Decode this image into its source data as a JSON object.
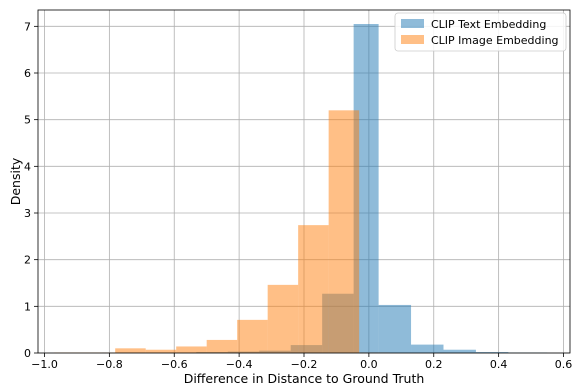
{
  "chart_data": {
    "type": "histogram",
    "xlabel": "Difference in Distance to Ground Truth",
    "ylabel": "Density",
    "xlim": [
      -1.02,
      0.62
    ],
    "ylim": [
      0,
      7.35
    ],
    "xticks": [
      -1.0,
      -0.8,
      -0.6,
      -0.4,
      -0.2,
      0.0,
      0.2,
      0.4,
      0.6
    ],
    "xtick_labels": [
      "−1.0",
      "−0.8",
      "−0.6",
      "−0.4",
      "−0.2",
      "0.0",
      "0.2",
      "0.4",
      "0.6"
    ],
    "yticks": [
      0,
      1,
      2,
      3,
      4,
      5,
      6,
      7
    ],
    "ytick_labels": [
      "0",
      "1",
      "2",
      "3",
      "4",
      "5",
      "6",
      "7"
    ],
    "grid": true,
    "legend_position": "top-right",
    "series": [
      {
        "name": "CLIP Text Embedding",
        "color": "#1f77b4",
        "alpha": 0.5,
        "bins": [
          {
            "x0": -0.92,
            "x1": -0.823,
            "value": 0.0
          },
          {
            "x0": -0.823,
            "x1": -0.726,
            "value": 0.01
          },
          {
            "x0": -0.726,
            "x1": -0.629,
            "value": 0.01
          },
          {
            "x0": -0.629,
            "x1": -0.532,
            "value": 0.01
          },
          {
            "x0": -0.532,
            "x1": -0.435,
            "value": 0.02
          },
          {
            "x0": -0.435,
            "x1": -0.338,
            "value": 0.03
          },
          {
            "x0": -0.338,
            "x1": -0.241,
            "value": 0.05
          },
          {
            "x0": -0.241,
            "x1": -0.144,
            "value": 0.17
          },
          {
            "x0": -0.144,
            "x1": -0.047,
            "value": 1.27
          },
          {
            "x0": -0.047,
            "x1": 0.03,
            "value": 7.05
          },
          {
            "x0": 0.03,
            "x1": 0.13,
            "value": 1.03
          },
          {
            "x0": 0.13,
            "x1": 0.23,
            "value": 0.18
          },
          {
            "x0": 0.23,
            "x1": 0.33,
            "value": 0.07
          },
          {
            "x0": 0.33,
            "x1": 0.43,
            "value": 0.02
          },
          {
            "x0": 0.43,
            "x1": 0.55,
            "value": 0.01
          }
        ]
      },
      {
        "name": "CLIP Image Embedding",
        "color": "#ff7f0e",
        "alpha": 0.5,
        "bins": [
          {
            "x0": -0.97,
            "x1": -0.876,
            "value": 0.01
          },
          {
            "x0": -0.876,
            "x1": -0.782,
            "value": 0.01
          },
          {
            "x0": -0.782,
            "x1": -0.688,
            "value": 0.1
          },
          {
            "x0": -0.688,
            "x1": -0.594,
            "value": 0.07
          },
          {
            "x0": -0.594,
            "x1": -0.5,
            "value": 0.14
          },
          {
            "x0": -0.5,
            "x1": -0.406,
            "value": 0.28
          },
          {
            "x0": -0.406,
            "x1": -0.312,
            "value": 0.71
          },
          {
            "x0": -0.312,
            "x1": -0.218,
            "value": 1.46
          },
          {
            "x0": -0.218,
            "x1": -0.124,
            "value": 2.74
          },
          {
            "x0": -0.124,
            "x1": -0.03,
            "value": 5.2
          },
          {
            "x0": -0.03,
            "x1": 0.064,
            "value": 0.01
          }
        ]
      }
    ]
  }
}
